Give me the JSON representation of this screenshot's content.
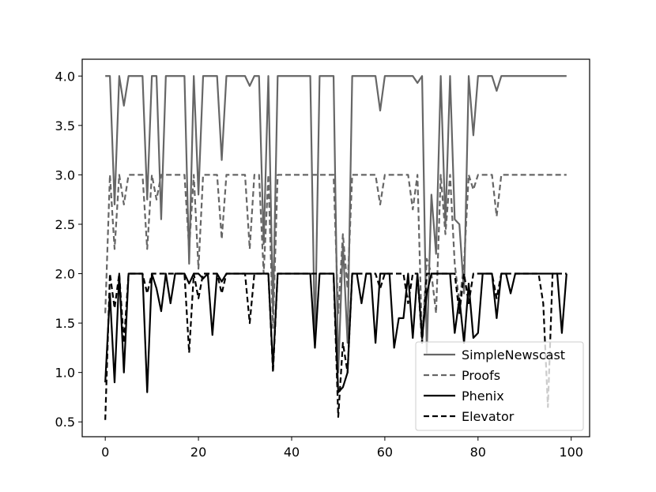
{
  "chart_data": {
    "type": "line",
    "title": "",
    "xlabel": "",
    "ylabel": "",
    "xlim": [
      -4.95,
      103.95
    ],
    "ylim": [
      0.35,
      4.17
    ],
    "x_ticks": [
      0,
      20,
      40,
      60,
      80,
      100
    ],
    "y_ticks": [
      0.5,
      1.0,
      1.5,
      2.0,
      2.5,
      3.0,
      3.5,
      4.0
    ],
    "x_tick_labels": [
      "0",
      "20",
      "40",
      "60",
      "80",
      "100"
    ],
    "y_tick_labels": [
      "0.5",
      "1.0",
      "1.5",
      "2.0",
      "2.5",
      "3.0",
      "3.5",
      "4.0"
    ],
    "grid": false,
    "legend_position": "bottom-right",
    "x": [
      0,
      1,
      2,
      3,
      4,
      5,
      6,
      7,
      8,
      9,
      10,
      11,
      12,
      13,
      14,
      15,
      16,
      17,
      18,
      19,
      20,
      21,
      22,
      23,
      24,
      25,
      26,
      27,
      28,
      29,
      30,
      31,
      32,
      33,
      34,
      35,
      36,
      37,
      38,
      39,
      40,
      41,
      42,
      43,
      44,
      45,
      46,
      47,
      48,
      49,
      50,
      51,
      52,
      53,
      54,
      55,
      56,
      57,
      58,
      59,
      60,
      61,
      62,
      63,
      64,
      65,
      66,
      67,
      68,
      69,
      70,
      71,
      72,
      73,
      74,
      75,
      76,
      77,
      78,
      79,
      80,
      81,
      82,
      83,
      84,
      85,
      86,
      87,
      88,
      89,
      90,
      91,
      92,
      93,
      94,
      95,
      96,
      97,
      98,
      99
    ],
    "series": [
      {
        "name": "SimpleNewscast",
        "color": "#666666",
        "dash": "solid",
        "values": [
          4.0,
          4.0,
          2.7,
          4.0,
          3.7,
          4.0,
          4.0,
          4.0,
          4.0,
          2.75,
          4.0,
          4.0,
          2.55,
          4.0,
          4.0,
          4.0,
          4.0,
          4.0,
          2.1,
          4.0,
          2.8,
          4.0,
          4.0,
          4.0,
          4.0,
          3.15,
          4.0,
          4.0,
          4.0,
          4.0,
          4.0,
          3.9,
          4.0,
          4.0,
          2.3,
          4.0,
          1.6,
          4.0,
          4.0,
          4.0,
          4.0,
          4.0,
          4.0,
          4.0,
          4.0,
          1.3,
          4.0,
          4.0,
          4.0,
          4.0,
          1.0,
          2.3,
          1.3,
          4.0,
          4.0,
          4.0,
          4.0,
          4.0,
          4.0,
          3.65,
          4.0,
          4.0,
          4.0,
          4.0,
          4.0,
          4.0,
          4.0,
          3.93,
          4.0,
          1.2,
          2.8,
          2.2,
          4.0,
          2.5,
          4.0,
          2.55,
          2.5,
          1.8,
          4.0,
          3.4,
          4.0,
          4.0,
          4.0,
          4.0,
          3.85,
          4.0,
          4.0,
          4.0,
          4.0,
          4.0,
          4.0,
          4.0,
          4.0,
          4.0,
          4.0,
          4.0,
          4.0,
          4.0,
          4.0,
          4.0
        ]
      },
      {
        "name": "Proofs",
        "color": "#666666",
        "dash": "dashed",
        "values": [
          1.6,
          3.0,
          2.25,
          3.0,
          2.7,
          3.0,
          3.0,
          3.0,
          3.0,
          2.25,
          3.0,
          2.75,
          3.0,
          3.0,
          3.0,
          3.0,
          3.0,
          3.0,
          2.25,
          3.0,
          2.05,
          3.0,
          3.0,
          3.0,
          3.0,
          2.35,
          3.0,
          3.0,
          3.0,
          3.0,
          3.0,
          2.25,
          3.0,
          3.0,
          2.0,
          3.0,
          1.45,
          3.0,
          3.0,
          3.0,
          3.0,
          3.0,
          3.0,
          3.0,
          3.0,
          3.0,
          3.0,
          3.0,
          3.0,
          3.0,
          1.6,
          2.4,
          1.85,
          3.0,
          3.0,
          3.0,
          3.0,
          3.0,
          3.0,
          2.7,
          3.0,
          3.0,
          3.0,
          3.0,
          3.0,
          3.0,
          2.65,
          3.0,
          1.3,
          2.15,
          2.0,
          1.6,
          3.0,
          2.4,
          3.0,
          2.1,
          1.7,
          2.1,
          3.0,
          2.85,
          3.0,
          3.0,
          3.0,
          3.0,
          2.58,
          3.0,
          3.0,
          3.0,
          3.0,
          3.0,
          3.0,
          3.0,
          3.0,
          3.0,
          3.0,
          3.0,
          3.0,
          3.0,
          3.0,
          3.0
        ]
      },
      {
        "name": "Phenix",
        "color": "#000000",
        "dash": "solid",
        "values": [
          0.9,
          1.8,
          0.9,
          2.0,
          1.0,
          2.0,
          2.0,
          2.0,
          2.0,
          0.8,
          2.0,
          1.85,
          1.62,
          2.0,
          1.7,
          2.0,
          2.0,
          2.0,
          1.9,
          2.0,
          2.0,
          1.95,
          2.0,
          1.38,
          2.0,
          1.92,
          2.0,
          2.0,
          2.0,
          2.0,
          2.0,
          2.0,
          2.0,
          2.0,
          2.0,
          2.0,
          1.05,
          2.0,
          2.0,
          2.0,
          2.0,
          2.0,
          2.0,
          2.0,
          2.0,
          1.25,
          2.0,
          2.0,
          2.0,
          2.0,
          0.8,
          0.85,
          1.0,
          2.0,
          2.0,
          1.7,
          2.0,
          2.0,
          1.3,
          2.0,
          2.0,
          2.0,
          1.25,
          1.55,
          1.55,
          2.0,
          1.35,
          2.0,
          1.35,
          1.8,
          2.0,
          2.0,
          2.0,
          2.0,
          2.0,
          1.4,
          1.75,
          1.3,
          1.9,
          1.35,
          1.4,
          2.0,
          2.0,
          2.0,
          1.55,
          2.0,
          2.0,
          1.8,
          2.0,
          2.0,
          2.0,
          2.0,
          2.0,
          2.0,
          2.0,
          2.0,
          2.0,
          2.0,
          1.4,
          2.0
        ]
      },
      {
        "name": "Elevator",
        "color": "#000000",
        "dash": "dashed",
        "values": [
          0.52,
          2.0,
          1.65,
          2.0,
          1.3,
          2.0,
          2.0,
          2.0,
          2.0,
          1.8,
          2.0,
          2.0,
          2.0,
          2.0,
          2.0,
          2.0,
          2.0,
          2.0,
          1.2,
          2.0,
          1.75,
          2.0,
          2.0,
          2.0,
          2.0,
          1.8,
          2.0,
          2.0,
          2.0,
          2.0,
          2.0,
          1.5,
          2.0,
          2.0,
          2.0,
          2.0,
          1.0,
          2.0,
          2.0,
          2.0,
          2.0,
          2.0,
          2.0,
          2.0,
          2.0,
          2.0,
          2.0,
          2.0,
          2.0,
          2.0,
          0.55,
          1.3,
          1.0,
          2.0,
          2.0,
          2.0,
          2.0,
          2.0,
          2.0,
          1.85,
          2.0,
          2.0,
          2.0,
          2.0,
          2.0,
          1.7,
          2.0,
          2.0,
          1.3,
          2.0,
          2.0,
          2.0,
          2.0,
          2.0,
          2.0,
          2.0,
          1.6,
          2.0,
          1.7,
          2.0,
          2.0,
          2.0,
          2.0,
          2.0,
          1.75,
          2.0,
          2.0,
          2.0,
          2.0,
          2.0,
          2.0,
          2.0,
          2.0,
          2.0,
          1.7,
          0.65,
          2.0,
          2.0,
          2.0,
          2.0
        ]
      }
    ]
  }
}
